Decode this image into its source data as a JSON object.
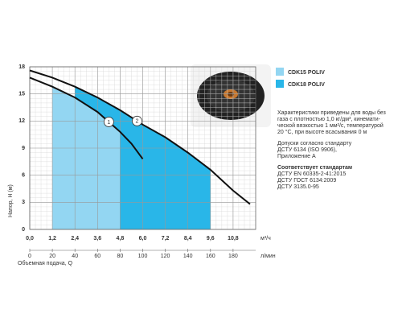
{
  "chart_data": {
    "type": "line",
    "x_label": "Объемная подача, Q",
    "y_label": "Напор, H (м)",
    "x_unit": "м³/ч",
    "x2_unit": "л/мин",
    "x": [
      0.0,
      1.2,
      2.4,
      3.6,
      4.8,
      5.4,
      6.0,
      7.2,
      8.4,
      9.6,
      10.8,
      11.7
    ],
    "series": [
      {
        "name": "CDK15 POLIV",
        "label": "1",
        "color": "#93d6f2",
        "range": [
          1.2,
          4.8
        ],
        "values": [
          16.8,
          15.8,
          14.6,
          13.0,
          10.8,
          9.5,
          7.8,
          null,
          null,
          null,
          null,
          null
        ]
      },
      {
        "name": "CDK18 POLIV",
        "label": "2",
        "color": "#29b6e8",
        "range": [
          2.4,
          9.6
        ],
        "values": [
          17.6,
          16.8,
          15.8,
          14.6,
          13.2,
          12.4,
          11.6,
          10.2,
          8.5,
          6.6,
          4.3,
          2.8
        ]
      }
    ],
    "xlim": [
      0,
      12
    ],
    "ylim": [
      0,
      18
    ],
    "xticks": [
      {
        "value": 0,
        "label": "0,0"
      },
      {
        "value": 1.2,
        "label": "1,2"
      },
      {
        "value": 2.4,
        "label": "2,4"
      },
      {
        "value": 3.6,
        "label": "3,6"
      },
      {
        "value": 4.8,
        "label": "4,8"
      },
      {
        "value": 6.0,
        "label": "6,0"
      },
      {
        "value": 7.2,
        "label": "7,2"
      },
      {
        "value": 8.4,
        "label": "8,4"
      },
      {
        "value": 9.6,
        "label": "9,6"
      },
      {
        "value": 10.8,
        "label": "10,8"
      }
    ],
    "x2lim": [
      0,
      200
    ],
    "x2ticks": [
      0,
      20,
      40,
      60,
      80,
      100,
      120,
      140,
      160,
      180
    ],
    "yticks": [
      0,
      3,
      6,
      9,
      12,
      15,
      18
    ],
    "grid": true
  },
  "notes": {
    "conditions": [
      "Характеристики приведены для воды без",
      "газа с плотностью 1,0 кг/дм³, кинемати-",
      "ческой вязкостью 1 мм²/с, температурой",
      "20 °C, при высоте всасывания 0 м"
    ],
    "tolerances": [
      "Допуски согласно стандарту",
      "ДСТУ 6134 (ISO 9906),",
      "Приложение А"
    ],
    "standards_title": "Соответствует стандартам",
    "standards": [
      "ДСТУ EN 60335-2-41:2015",
      "ДСТУ ГОСТ 6134:2009",
      "ДСТУ 3135.0-95"
    ]
  }
}
